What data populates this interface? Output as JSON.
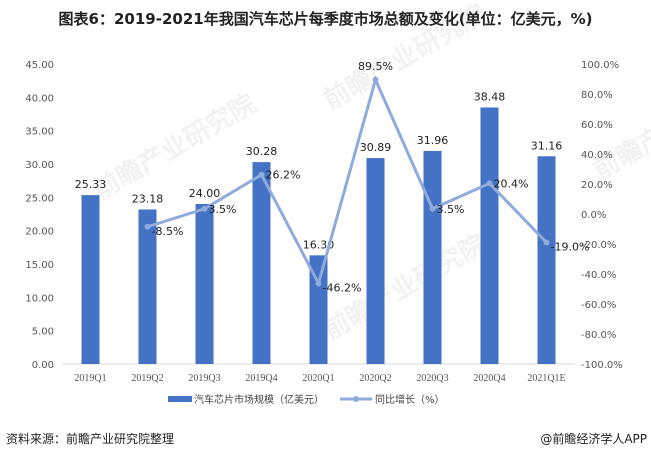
{
  "title": "图表6：2019-2021年我国汽车芯片每季度市场总额及变化(单位：亿美元，%)",
  "source": "资料来源：前瞻产业研究院整理",
  "credit": "@前瞻经济学人APP",
  "watermark": "前瞻产业研究院",
  "chart_data": {
    "type": "bar+line",
    "categories": [
      "2019Q1",
      "2019Q2",
      "2019Q3",
      "2019Q4",
      "2020Q1",
      "2020Q2",
      "2020Q3",
      "2020Q4",
      "2021Q1E"
    ],
    "series": [
      {
        "name": "汽车芯片市场规模（亿美元）",
        "type": "bar",
        "axis": "left",
        "color": "#4472C4",
        "values": [
          25.33,
          23.18,
          24.0,
          30.28,
          16.3,
          30.89,
          31.96,
          38.48,
          31.16
        ],
        "labels": [
          "25.33",
          "23.18",
          "24.00",
          "30.28",
          "16.30",
          "30.89",
          "31.96",
          "38.48",
          "31.16"
        ]
      },
      {
        "name": "同比增长（%）",
        "type": "line",
        "axis": "right",
        "color": "#8FAADC",
        "values": [
          null,
          -8.5,
          3.5,
          26.2,
          -46.2,
          89.5,
          3.5,
          20.4,
          -19.0
        ],
        "labels": [
          "",
          "-8.5%",
          "3.5%",
          "26.2%",
          "-46.2%",
          "89.5%",
          "3.5%",
          "20.4%",
          "-19.0%"
        ]
      }
    ],
    "left_axis": {
      "range": [
        0,
        45
      ],
      "ticks": [
        "0.00",
        "5.00",
        "10.00",
        "15.00",
        "20.00",
        "25.00",
        "30.00",
        "35.00",
        "40.00",
        "45.00"
      ]
    },
    "right_axis": {
      "range": [
        -100,
        100
      ],
      "ticks": [
        "-100.0%",
        "-80.0%",
        "-60.0%",
        "-40.0%",
        "-20.0%",
        "0.0%",
        "20.0%",
        "40.0%",
        "60.0%",
        "80.0%",
        "100.0%"
      ]
    },
    "grid": false,
    "legend": "bottom"
  }
}
